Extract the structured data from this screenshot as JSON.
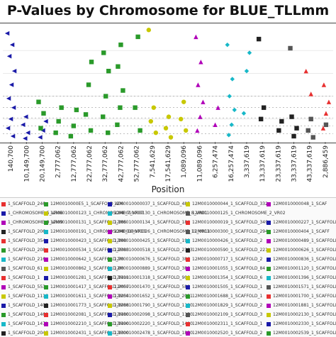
{
  "chart_data": {
    "type": "scatter",
    "title": "P-Values by Chromosome for BLUE_TLLmm",
    "xlabel": "Position",
    "ylabel": "",
    "x_tick_labels": [
      "140,700",
      "10,149,700",
      "20,149,700",
      "2,777,062",
      "12,777,062",
      "22,777,062",
      "32,777,062",
      "42,777,062",
      "52,777,062",
      "7,541,629",
      "17,541,629",
      "1,089,096",
      "11,089,096",
      "6,257,474",
      "16,257,474",
      "3,337,619",
      "13,337,619",
      "23,337,619",
      "33,337,619",
      "43,337,619",
      "2,886,459"
    ],
    "grid": true,
    "series": [
      {
        "color": "#1a1aa8",
        "shape": "triangle-left",
        "points": [
          [
            0,
            0.95
          ],
          [
            0,
            0.85
          ],
          [
            0,
            0.75
          ],
          [
            0,
            0.62
          ],
          [
            0,
            0.5
          ],
          [
            0,
            0.38
          ],
          [
            0,
            0.3
          ],
          [
            0,
            0.2
          ],
          [
            0,
            0.12
          ],
          [
            0,
            0.05
          ],
          [
            1,
            0.22
          ],
          [
            1,
            0.15
          ],
          [
            1,
            0.08
          ],
          [
            1,
            0.03
          ],
          [
            2,
            0.18
          ],
          [
            2,
            0.1
          ],
          [
            2,
            0.04
          ]
        ]
      },
      {
        "color": "#2a9a2a",
        "shape": "square",
        "points": [
          [
            2,
            0.35
          ],
          [
            2,
            0.25
          ],
          [
            2,
            0.12
          ],
          [
            3,
            0.3
          ],
          [
            3,
            0.18
          ],
          [
            3,
            0.08
          ],
          [
            4,
            0.28
          ],
          [
            4,
            0.14
          ],
          [
            4,
            0.05
          ],
          [
            5,
            0.7
          ],
          [
            5,
            0.5
          ],
          [
            5,
            0.24
          ],
          [
            5,
            0.1
          ],
          [
            6,
            0.78
          ],
          [
            6,
            0.62
          ],
          [
            6,
            0.4
          ],
          [
            6,
            0.22
          ],
          [
            6,
            0.08
          ],
          [
            7,
            0.85
          ],
          [
            7,
            0.66
          ],
          [
            7,
            0.45
          ],
          [
            7,
            0.3
          ],
          [
            7,
            0.15
          ],
          [
            8,
            0.92
          ],
          [
            8,
            0.3
          ],
          [
            8,
            0.1
          ]
        ]
      },
      {
        "color": "#c8c800",
        "shape": "circle",
        "points": [
          [
            9,
            0.98
          ],
          [
            9,
            0.3
          ],
          [
            9,
            0.18
          ],
          [
            9,
            0.08
          ],
          [
            10,
            0.22
          ],
          [
            10,
            0.12
          ],
          [
            10,
            0.04
          ],
          [
            11,
            0.35
          ],
          [
            11,
            0.2
          ],
          [
            11,
            0.1
          ]
        ]
      },
      {
        "color": "#b000b8",
        "shape": "triangle-up",
        "points": [
          [
            12,
            0.92
          ],
          [
            12,
            0.7
          ],
          [
            12,
            0.5
          ],
          [
            12,
            0.35
          ],
          [
            12,
            0.22
          ],
          [
            12,
            0.1
          ],
          [
            13,
            0.3
          ],
          [
            13,
            0.15
          ]
        ]
      },
      {
        "color": "#17b8c8",
        "shape": "diamond",
        "points": [
          [
            14,
            0.85
          ],
          [
            14,
            0.55
          ],
          [
            14,
            0.4
          ],
          [
            14,
            0.28
          ],
          [
            14,
            0.15
          ],
          [
            14,
            0.06
          ],
          [
            15,
            0.78
          ],
          [
            15,
            0.62
          ],
          [
            15,
            0.25
          ]
        ]
      },
      {
        "color": "#222222",
        "shape": "square",
        "points": [
          [
            16,
            0.9
          ],
          [
            16,
            0.3
          ],
          [
            16,
            0.2
          ],
          [
            17,
            0.18
          ],
          [
            17,
            0.1
          ],
          [
            18,
            0.22
          ],
          [
            18,
            0.12
          ],
          [
            18,
            0.05
          ]
        ]
      },
      {
        "color": "#555555",
        "shape": "square",
        "points": [
          [
            18,
            0.82
          ],
          [
            19,
            0.2
          ],
          [
            19,
            0.1
          ],
          [
            19,
            0.04
          ],
          [
            20,
            0.15
          ]
        ]
      },
      {
        "color": "#e83030",
        "shape": "triangle-up",
        "points": [
          [
            19,
            0.62
          ],
          [
            19,
            0.42
          ],
          [
            20,
            0.5
          ],
          [
            20,
            0.35
          ],
          [
            20,
            0.25
          ],
          [
            20,
            0.12
          ]
        ]
      }
    ],
    "threshold_lines": [
      0.07,
      0.14,
      0.21,
      0.3,
      0.4
    ]
  },
  "legend": {
    "rows": [
      [
        {
          "label": "1_SCAFFOLD_246",
          "color": "#e83030"
        },
        {
          "label": "12M0010000E5_1_SCAFFOLD_406",
          "color": "#2a9a2a"
        },
        {
          "label": "12M0010000037_1_SCAFFOLD_485",
          "color": "#1a1aa8"
        },
        {
          "label": "12M0010000044_1_SCAFFOLD_332",
          "color": "#c8c800"
        },
        {
          "label": "12M0010000048_1_SCAF",
          "color": "#b000b8"
        }
      ],
      [
        {
          "label": "1_CHROMOSOME_5_VR06",
          "color": "#1a1aa8"
        },
        {
          "label": "12M0010000123_1_CHROMOSOME_7_VR07",
          "color": "#c8c800"
        },
        {
          "label": "12M0010000130_1_CHROMOSOME_8_VR01",
          "color": "#17b8c8"
        },
        {
          "label": "12M0010000125_1_CHROMOSOME_2_VR02",
          "color": "#555555"
        }
      ],
      [
        {
          "label": "1_CHROMOSOME_9_VR09",
          "color": "#b000b8"
        },
        {
          "label": "12M0010000131_1_SCAFFOLD_186",
          "color": "#2a9a2a"
        },
        {
          "label": "12M0010000134_1_SCAFFOLD_184",
          "color": "#c8c800"
        },
        {
          "label": "12M0010000019_1_SCAFFOLD_349",
          "color": "#e83030"
        },
        {
          "label": "12M0010000227_1_SCAFFOLD",
          "color": "#1a1aa8"
        }
      ],
      [
        {
          "label": "1_SCAFFOLD_206",
          "color": "#222222"
        },
        {
          "label": "12M0010000191_1_CHROMOSOME_10_VR10",
          "color": "#17b8c8"
        },
        {
          "label": "12M0010000326_1_CHROMOSOME_11_VR11",
          "color": "#b000b8"
        },
        {
          "label": "12M0010000300_1_SCAFFOLD_294",
          "color": "#555555"
        },
        {
          "label": "12M0010000404_1_SCAFF",
          "color": "#2a9a2a"
        }
      ],
      [
        {
          "label": "1_SCAFFOLD_354",
          "color": "#e83030"
        },
        {
          "label": "12M0010000423_1_SCAFFOLD_198",
          "color": "#1a1aa8"
        },
        {
          "label": "12M0010000425_1_SCAFFOLD_198",
          "color": "#c8c800"
        },
        {
          "label": "12M0010000426_1_SCAFFOLD_2",
          "color": "#17b8c8"
        },
        {
          "label": "12M0010000489_1_SCAFFOLD",
          "color": "#b000b8"
        }
      ],
      [
        {
          "label": "1_SCAFFOLD_208",
          "color": "#2a9a2a"
        },
        {
          "label": "12M0010000534_1_SCAFFOLD_2383",
          "color": "#e83030"
        },
        {
          "label": "12M0010000518_1_SCAFFOLD_2383",
          "color": "#1a1aa8"
        },
        {
          "label": "12M0010000590_1_SCAFFOLD_221",
          "color": "#222222"
        },
        {
          "label": "12M0010000626_1_SCAFFOLD",
          "color": "#c8c800"
        }
      ],
      [
        {
          "label": "1_SCAFFOLD_216",
          "color": "#17b8c8"
        },
        {
          "label": "12M0010000642_1_SCAFFOLD_70",
          "color": "#b000b8"
        },
        {
          "label": "12M0010000676_1_SCAFFOLD_386",
          "color": "#2a9a2a"
        },
        {
          "label": "12M0010000717_1_SCAFFOLD_2",
          "color": "#e83030"
        },
        {
          "label": "12M0010000836_1_SCAFFOLD",
          "color": "#1a1aa8"
        }
      ],
      [
        {
          "label": "1_SCAFFOLD_61",
          "color": "#555555"
        },
        {
          "label": "12M0010000862_1_SCAFFOLD_80",
          "color": "#c8c800"
        },
        {
          "label": "12M0010000889_1_SCAFFOLD_380",
          "color": "#17b8c8"
        },
        {
          "label": "12M0010001055_1_SCAFFOLD_84",
          "color": "#b000b8"
        },
        {
          "label": "12M0010001120_1_SCAFFOLD",
          "color": "#2a9a2a"
        }
      ],
      [
        {
          "label": "1_SCAFFOLD_1",
          "color": "#e83030"
        },
        {
          "label": "12M0010001281_1_SCAFFOLD_1111",
          "color": "#1a1aa8"
        },
        {
          "label": "12M0010001318_1_SCAFFOLD_900",
          "color": "#222222"
        },
        {
          "label": "12M0010001354_1_SCAFFOLD_6",
          "color": "#c8c800"
        },
        {
          "label": "12M0010001396_1_SCAFFOLD",
          "color": "#17b8c8"
        }
      ],
      [
        {
          "label": "1_SCAFFOLD_553",
          "color": "#b000b8"
        },
        {
          "label": "12M0010001417_1_SCAFFOLD_2057",
          "color": "#2a9a2a"
        },
        {
          "label": "12M0010001470_1_SCAFFOLD_588",
          "color": "#e83030"
        },
        {
          "label": "12M0010001505_1_SCAFFOLD_1",
          "color": "#1a1aa8"
        },
        {
          "label": "12M0010001571_1_SCAFFOLD",
          "color": "#555555"
        }
      ],
      [
        {
          "label": "1_SCAFFOLD_1116",
          "color": "#c8c800"
        },
        {
          "label": "12M0010001611_1_SCAFFOLD_1254",
          "color": "#17b8c8"
        },
        {
          "label": "12M0010001652_1_SCAFFOLD_2031",
          "color": "#b000b8"
        },
        {
          "label": "12M0010001688_1_SCAFFOLD_1",
          "color": "#2a9a2a"
        },
        {
          "label": "12M0010001700_1_SCAFFOLD",
          "color": "#e83030"
        }
      ],
      [
        {
          "label": "1_SCAFFOLD_1405",
          "color": "#1a1aa8"
        },
        {
          "label": "12M0010001773_1_SCAFFOLD_1288",
          "color": "#222222"
        },
        {
          "label": "12M0010001790_1_SCAFFOLD_1100",
          "color": "#c8c800"
        },
        {
          "label": "12M0010001829_1_SCAFFOLD_2",
          "color": "#17b8c8"
        },
        {
          "label": "12M0010001881_1_SCAFFOLD",
          "color": "#b000b8"
        }
      ],
      [
        {
          "label": "1_SCAFFOLD_1460",
          "color": "#2a9a2a"
        },
        {
          "label": "12M0010002081_1_SCAFFOLD_1180",
          "color": "#e83030"
        },
        {
          "label": "12M0010002098_1_SCAFFOLD_1150",
          "color": "#1a1aa8"
        },
        {
          "label": "12M0010002109_1_SCAFFOLD_3",
          "color": "#555555"
        },
        {
          "label": "12M0010002130_1_SCAFFOLD",
          "color": "#c8c800"
        }
      ],
      [
        {
          "label": "1_SCAFFOLD_1471",
          "color": "#17b8c8"
        },
        {
          "label": "12M0010002210_1_SCAFFOLD_1190",
          "color": "#b000b8"
        },
        {
          "label": "12M0010002220_1_SCAFFOLD_1400",
          "color": "#2a9a2a"
        },
        {
          "label": "12M0010002311_1_SCAFFOLD_1",
          "color": "#e83030"
        },
        {
          "label": "12M0010002330_1_SCAFFOLD",
          "color": "#1a1aa8"
        }
      ],
      [
        {
          "label": "1_SCAFFOLD_2046",
          "color": "#222222"
        },
        {
          "label": "12M0010002431_1_SCAFFOLD_1300",
          "color": "#c8c800"
        },
        {
          "label": "12M0010002478_1_SCAFFOLD_1850",
          "color": "#17b8c8"
        },
        {
          "label": "12M0010002520_1_SCAFFOLD_2",
          "color": "#b000b8"
        },
        {
          "label": "12M0010002539_1_SCAFFOLD",
          "color": "#2a9a2a"
        }
      ]
    ]
  }
}
